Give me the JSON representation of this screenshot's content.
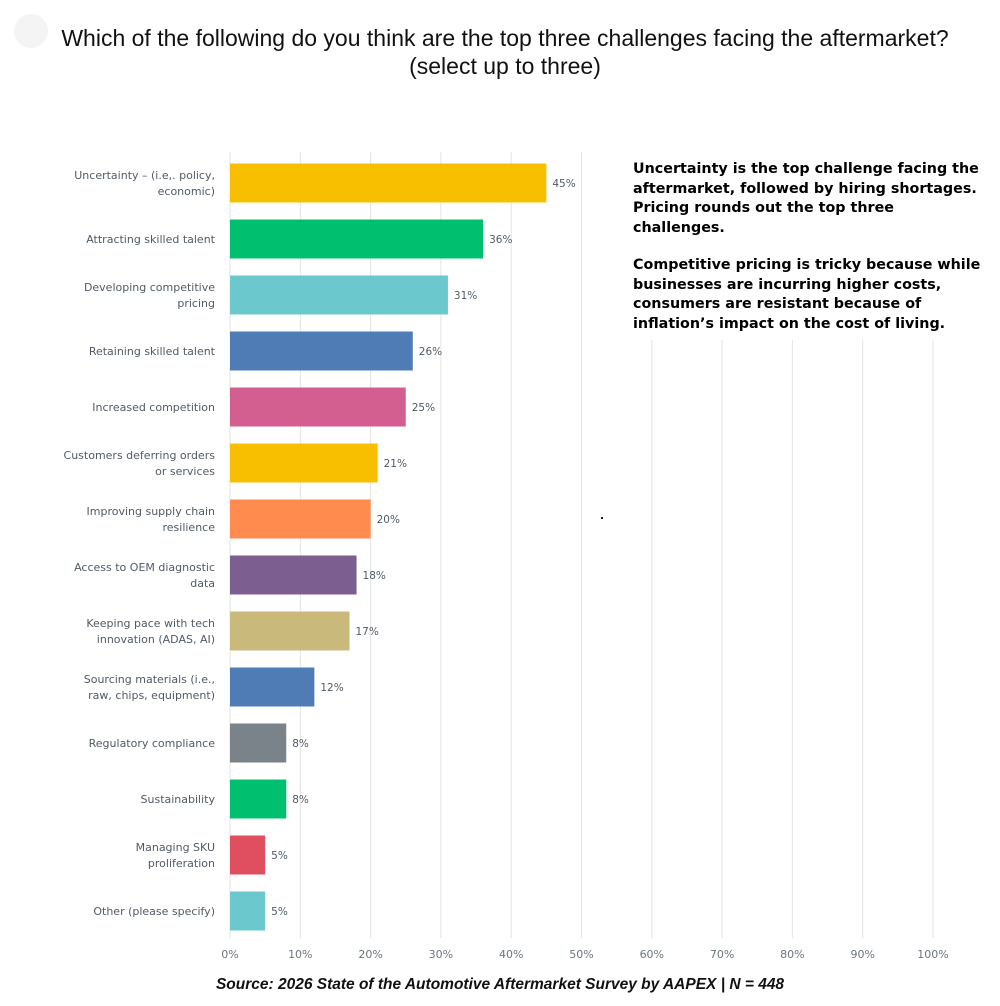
{
  "header": {
    "title_line1": "Which of the following do you think are the top three challenges facing the aftermarket?",
    "title_line2": "(select up to three)"
  },
  "callout": {
    "paragraph1": "Uncertainty is the top challenge facing the aftermarket, followed by hiring shortages. Pricing rounds out the top three challenges.",
    "paragraph2": "Competitive pricing is tricky because while businesses are incurring higher costs, consumers are resistant because of inflation’s impact on the cost of living."
  },
  "footer": {
    "source": "Source: 2026 State of the Automotive Aftermarket Survey by AAPEX | N = 448"
  },
  "chart_data": {
    "type": "bar",
    "orientation": "horizontal",
    "categories": [
      [
        "Uncertainty – (i.e,. policy,",
        "economic)"
      ],
      [
        "Attracting skilled talent"
      ],
      [
        "Developing competitive",
        "pricing"
      ],
      [
        "Retaining skilled talent"
      ],
      [
        "Increased competition"
      ],
      [
        "Customers deferring orders",
        "or services"
      ],
      [
        "Improving supply chain",
        "resilience"
      ],
      [
        "Access to OEM diagnostic",
        "data"
      ],
      [
        "Keeping pace with tech",
        "innovation (ADAS, AI)"
      ],
      [
        "Sourcing materials (i.e.,",
        "raw, chips, equipment)"
      ],
      [
        "Regulatory compliance"
      ],
      [
        "Sustainability"
      ],
      [
        "Managing SKU",
        "proliferation"
      ],
      [
        "Other (please specify)"
      ]
    ],
    "values": [
      45,
      36,
      31,
      26,
      25,
      21,
      20,
      18,
      17,
      12,
      8,
      8,
      5,
      5
    ],
    "value_labels": [
      "45%",
      "36%",
      "31%",
      "26%",
      "25%",
      "21%",
      "20%",
      "18%",
      "17%",
      "12%",
      "8%",
      "8%",
      "5%",
      "5%"
    ],
    "colors": [
      "#f7bf00",
      "#00bf6f",
      "#6bc8cd",
      "#507cb6",
      "#d25f90",
      "#f7bf00",
      "#ff8b4f",
      "#7d5e90",
      "#c9b97a",
      "#507cb6",
      "#7a838a",
      "#00bf6f",
      "#e04f5f",
      "#6bc8cd"
    ],
    "xlim": [
      0,
      100
    ],
    "x_ticks": [
      0,
      10,
      20,
      30,
      40,
      50,
      60,
      70,
      80,
      90,
      100
    ],
    "x_tick_labels": [
      "0%",
      "10%",
      "20%",
      "30%",
      "40%",
      "50%",
      "60%",
      "70%",
      "80%",
      "90%",
      "100%"
    ],
    "grid": true,
    "xlabel": "",
    "ylabel": ""
  }
}
